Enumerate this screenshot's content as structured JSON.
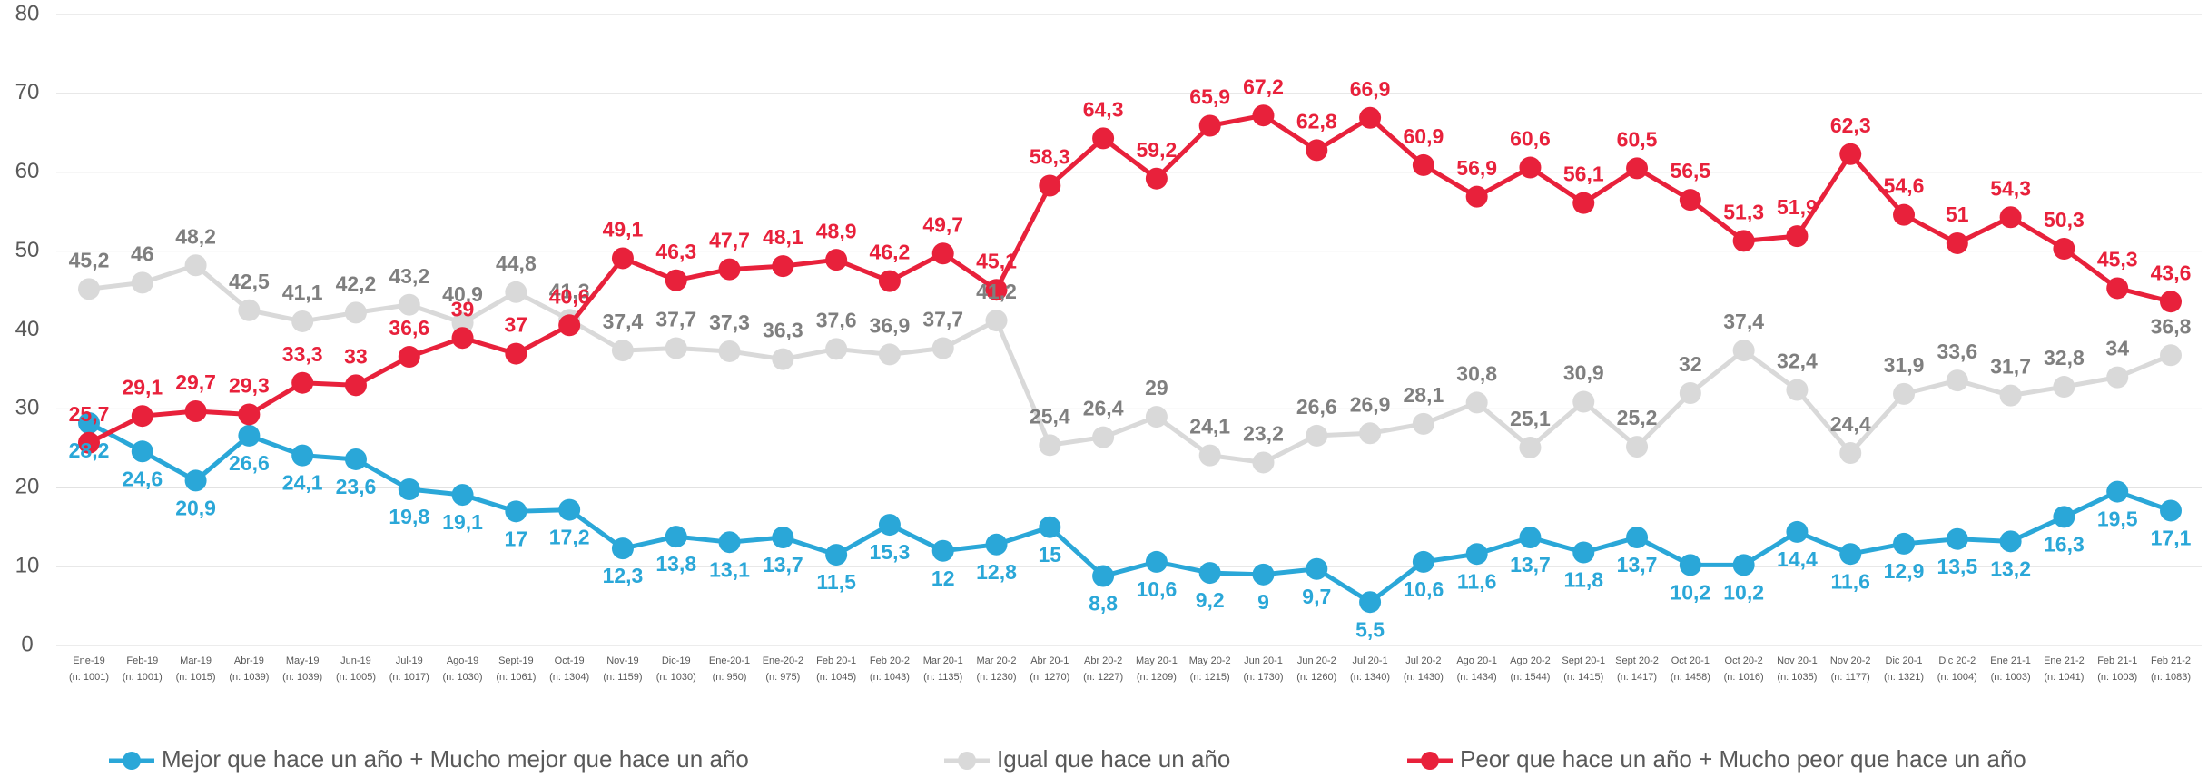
{
  "chart_data": {
    "type": "line",
    "categories": [
      "Ene-19",
      "Feb-19",
      "Mar-19",
      "Abr-19",
      "May-19",
      "Jun-19",
      "Jul-19",
      "Ago-19",
      "Sept-19",
      "Oct-19",
      "Nov-19",
      "Dic-19",
      "Ene-20-1",
      "Ene-20-2",
      "Feb 20-1",
      "Feb 20-2",
      "Mar 20-1",
      "Mar 20-2",
      "Abr 20-1",
      "Abr 20-2",
      "May 20-1",
      "May 20-2",
      "Jun 20-1",
      "Jun 20-2",
      "Jul 20-1",
      "Jul 20-2",
      "Ago 20-1",
      "Ago 20-2",
      "Sept 20-1",
      "Sept 20-2",
      "Oct 20-1",
      "Oct 20-2",
      "Nov 20-1",
      "Nov 20-2",
      "Dic 20-1",
      "Dic 20-2",
      "Ene 21-1",
      "Ene 21-2",
      "Feb 21-1",
      "Feb 21-2"
    ],
    "sample_sizes": [
      "(n: 1001)",
      "(n: 1001)",
      "(n: 1015)",
      "(n: 1039)",
      "(n: 1039)",
      "(n: 1005)",
      "(n: 1017)",
      "(n: 1030)",
      "(n: 1061)",
      "(n: 1304)",
      "(n: 1159)",
      "(n: 1030)",
      "(n: 950)",
      "(n: 975)",
      "(n: 1045)",
      "(n: 1043)",
      "(n: 1135)",
      "(n: 1230)",
      "(n: 1270)",
      "(n: 1227)",
      "(n: 1209)",
      "(n: 1215)",
      "(n: 1730)",
      "(n: 1260)",
      "(n: 1340)",
      "(n: 1430)",
      "(n: 1434)",
      "(n: 1544)",
      "(n: 1415)",
      "(n: 1417)",
      "(n: 1458)",
      "(n: 1016)",
      "(n: 1035)",
      "(n: 1177)",
      "(n: 1321)",
      "(n: 1004)",
      "(n: 1003)",
      "(n: 1041)",
      "(n: 1003)",
      "(n: 1083)"
    ],
    "ylim": [
      0,
      80
    ],
    "yticks": [
      0,
      10,
      20,
      30,
      40,
      50,
      60,
      70,
      80
    ],
    "grid": true,
    "series": [
      {
        "name": "Mejor que hace un año + Mucho mejor que hace un año",
        "color": "#2aa7d8",
        "label_color": "#2aa7d8",
        "label_side": "below",
        "values": [
          28.2,
          24.6,
          20.9,
          26.6,
          24.1,
          23.6,
          19.8,
          19.1,
          17,
          17.2,
          12.3,
          13.8,
          13.1,
          13.7,
          11.5,
          15.3,
          12,
          12.8,
          15,
          8.8,
          10.6,
          9.2,
          9,
          9.7,
          5.5,
          10.6,
          11.6,
          13.7,
          11.8,
          13.7,
          10.2,
          10.2,
          14.4,
          11.6,
          12.9,
          13.5,
          13.2,
          16.3,
          19.5,
          17.1
        ],
        "value_labels": [
          "28,2",
          "24,6",
          "20,9",
          "26,6",
          "24,1",
          "23,6",
          "19,8",
          "19,1",
          "17",
          "17,2",
          "12,3",
          "13,8",
          "13,1",
          "13,7",
          "11,5",
          "15,3",
          "12",
          "12,8",
          "15",
          "8,8",
          "10,6",
          "9,2",
          "9",
          "9,7",
          "5,5",
          "10,6",
          "11,6",
          "13,7",
          "11,8",
          "13,7",
          "10,2",
          "10,2",
          "14,4",
          "11,6",
          "12,9",
          "13,5",
          "13,2",
          "16,3",
          "19,5",
          "17,1"
        ]
      },
      {
        "name": "Igual que hace un año",
        "color": "#d9d9d9",
        "label_color": "#7f7f7f",
        "label_side": "above",
        "values": [
          45.2,
          46,
          48.2,
          42.5,
          41.1,
          42.2,
          43.2,
          40.9,
          44.8,
          41.3,
          37.4,
          37.7,
          37.3,
          36.3,
          37.6,
          36.9,
          37.7,
          41.2,
          25.4,
          26.4,
          29,
          24.1,
          23.2,
          26.6,
          26.9,
          28.1,
          30.8,
          25.1,
          30.9,
          25.2,
          32,
          37.4,
          32.4,
          24.4,
          31.9,
          33.6,
          31.7,
          32.8,
          34,
          36.8
        ],
        "value_labels": [
          "45,2",
          "46",
          "48,2",
          "42,5",
          "41,1",
          "42,2",
          "43,2",
          "40,9",
          "44,8",
          "41,3",
          "37,4",
          "37,7",
          "37,3",
          "36,3",
          "37,6",
          "36,9",
          "37,7",
          "41,2",
          "25,4",
          "26,4",
          "29",
          "24,1",
          "23,2",
          "26,6",
          "26,9",
          "28,1",
          "30,8",
          "25,1",
          "30,9",
          "25,2",
          "32",
          "37,4",
          "32,4",
          "24,4",
          "31,9",
          "33,6",
          "31,7",
          "32,8",
          "34",
          "36,8"
        ]
      },
      {
        "name": "Peor que hace un año + Mucho peor que hace un año",
        "color": "#e8213b",
        "label_color": "#e8213b",
        "label_side": "above",
        "values": [
          25.7,
          29.1,
          29.7,
          29.3,
          33.3,
          33,
          36.6,
          39,
          37,
          40.6,
          49.1,
          46.3,
          47.7,
          48.1,
          48.9,
          46.2,
          49.7,
          45.1,
          58.3,
          64.3,
          59.2,
          65.9,
          67.2,
          62.8,
          66.9,
          60.9,
          56.9,
          60.6,
          56.1,
          60.5,
          56.5,
          51.3,
          51.9,
          62.3,
          54.6,
          51,
          54.3,
          50.3,
          45.3,
          43.6
        ],
        "value_labels": [
          "25,7",
          "29,1",
          "29,7",
          "29,3",
          "33,3",
          "33",
          "36,6",
          "39",
          "37",
          "40,6",
          "49,1",
          "46,3",
          "47,7",
          "48,1",
          "48,9",
          "46,2",
          "49,7",
          "45,1",
          "58,3",
          "64,3",
          "59,2",
          "65,9",
          "67,2",
          "62,8",
          "66,9",
          "60,9",
          "56,9",
          "60,6",
          "56,1",
          "60,5",
          "56,5",
          "51,3",
          "51,9",
          "62,3",
          "54,6",
          "51",
          "54,3",
          "50,3",
          "45,3",
          "43,6"
        ]
      }
    ]
  }
}
